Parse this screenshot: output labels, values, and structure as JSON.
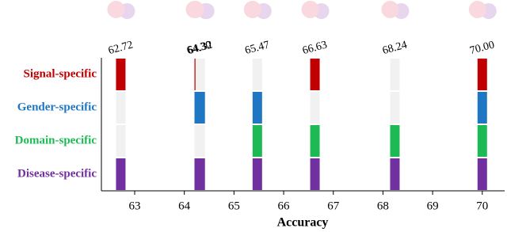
{
  "chart_data": {
    "type": "matrix",
    "x_label": "Accuracy",
    "x": [
      62.72,
      64.3,
      64.32,
      65.47,
      66.63,
      68.24,
      70.0
    ],
    "value_labels": [
      "62.72",
      "64.30",
      "64.32",
      "65.47",
      "66.63",
      "68.24",
      "70.00"
    ],
    "xlim": [
      62.33,
      70.45
    ],
    "xticks": [
      63,
      64,
      65,
      66,
      67,
      68,
      69,
      70
    ],
    "inactive_color": "#f0f1f0",
    "rows": [
      {
        "name": "Signal-specific",
        "color": "#c00000",
        "active": [
          true,
          true,
          false,
          false,
          true,
          false,
          true
        ]
      },
      {
        "name": "Gender-specific",
        "color": "#1f77c4",
        "active": [
          false,
          true,
          true,
          true,
          false,
          false,
          true
        ]
      },
      {
        "name": "Domain-specific",
        "color": "#1db954",
        "active": [
          false,
          false,
          false,
          true,
          true,
          true,
          true
        ]
      },
      {
        "name": "Disease-specific",
        "color": "#7030a0",
        "active": [
          true,
          true,
          true,
          true,
          true,
          true,
          true
        ]
      }
    ]
  }
}
